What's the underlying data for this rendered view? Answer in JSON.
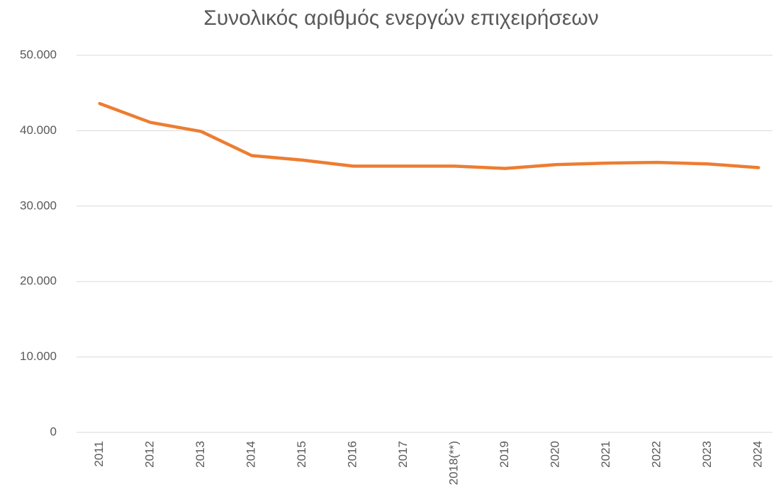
{
  "chart_data": {
    "type": "line",
    "title": "Συνολικός αριθμός ενεργών επιχειρήσεων",
    "categories": [
      "2011",
      "2012",
      "2013",
      "2014",
      "2015",
      "2016",
      "2017",
      "2018(**)",
      "2019",
      "2020",
      "2021",
      "2022",
      "2023",
      "2024"
    ],
    "values": [
      43600,
      41100,
      39900,
      36700,
      36100,
      35300,
      35300,
      35300,
      35000,
      35500,
      35700,
      35800,
      35600,
      35100
    ],
    "color": "#ed7d31",
    "ylim": [
      0,
      50000
    ],
    "yticks": [
      0,
      {
        "value": 10000,
        "label": "10.000"
      },
      {
        "value": 20000,
        "label": "20.000"
      },
      {
        "value": 30000,
        "label": "30.000"
      },
      {
        "value": 40000,
        "label": "40.000"
      },
      {
        "value": 50000,
        "label": "50.000"
      }
    ],
    "grid": true
  }
}
